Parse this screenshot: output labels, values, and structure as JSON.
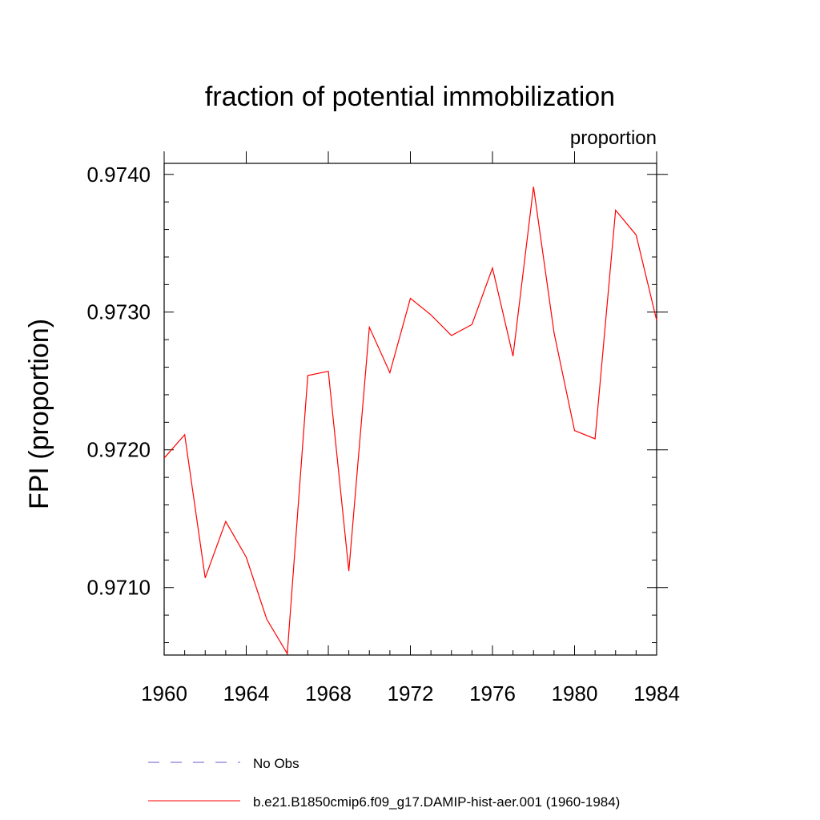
{
  "chart_data": {
    "type": "line",
    "title": "fraction of potential immobilization",
    "subtitle": "proportion",
    "ylabel": "FPI  (proportion)",
    "xlabel": "",
    "xlim": [
      1960,
      1984
    ],
    "ylim": [
      0.97051,
      0.97408
    ],
    "xticks": [
      "1960",
      "1964",
      "1968",
      "1972",
      "1976",
      "1980",
      "1984"
    ],
    "yticks": [
      "0.9710",
      "0.9720",
      "0.9730",
      "0.9740"
    ],
    "grid": false,
    "legend_position": "bottom",
    "series": [
      {
        "name": "No Obs",
        "color": "#6a5acd",
        "dash": "dashed",
        "x": [],
        "values": []
      },
      {
        "name": "b.e21.B1850cmip6.f09_g17.DAMIP-hist-aer.001 (1960-1984)",
        "color": "#ff0000",
        "dash": "solid",
        "x": [
          1960,
          1961,
          1962,
          1963,
          1964,
          1965,
          1966,
          1967,
          1968,
          1969,
          1970,
          1971,
          1972,
          1973,
          1974,
          1975,
          1976,
          1977,
          1978,
          1979,
          1980,
          1981,
          1982,
          1983,
          1984
        ],
        "values": [
          0.97194,
          0.97211,
          0.97107,
          0.97148,
          0.97122,
          0.97077,
          0.97052,
          0.97254,
          0.97257,
          0.97112,
          0.97289,
          0.97256,
          0.9731,
          0.97298,
          0.97283,
          0.97291,
          0.97332,
          0.97268,
          0.97391,
          0.97285,
          0.97214,
          0.97208,
          0.97374,
          0.97356,
          0.97294
        ]
      }
    ]
  }
}
